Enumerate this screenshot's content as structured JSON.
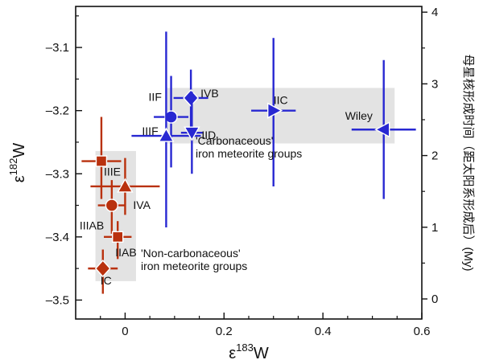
{
  "chart_data": {
    "type": "scatter",
    "xlabel_base": "ε",
    "xlabel_sup": "183",
    "xlabel_tail": "W",
    "ylabel_base": "ε",
    "ylabel_sup": "182",
    "ylabel_tail": "W",
    "y2label": "母星核形成时间（距太阳系形成后）(My)",
    "xlim": [
      -0.1,
      0.6
    ],
    "ylim": [
      -3.53,
      -3.035
    ],
    "y2lim": [
      -0.28,
      4.08
    ],
    "x_ticks": [
      {
        "value": 0,
        "label": "0"
      },
      {
        "value": 0.2,
        "label": "0.2"
      },
      {
        "value": 0.4,
        "label": "0.4"
      },
      {
        "value": 0.6,
        "label": "0.6"
      }
    ],
    "x_minor_ticks": [
      -0.05,
      0.05,
      0.1,
      0.15,
      0.25,
      0.3,
      0.35,
      0.45,
      0.5,
      0.55
    ],
    "y_ticks": [
      {
        "value": -3.5,
        "label": "–3.5"
      },
      {
        "value": -3.4,
        "label": "–3.4"
      },
      {
        "value": -3.3,
        "label": "–3.3"
      },
      {
        "value": -3.2,
        "label": "–3.2"
      },
      {
        "value": -3.1,
        "label": "–3.1"
      }
    ],
    "y_minor_ticks": [
      -3.45,
      -3.35,
      -3.25,
      -3.15,
      -3.05
    ],
    "y2_ticks": [
      {
        "value": 0,
        "label": "0"
      },
      {
        "value": 1,
        "label": "1"
      },
      {
        "value": 2,
        "label": "2"
      },
      {
        "value": 3,
        "label": "3"
      },
      {
        "value": 4,
        "label": "4"
      }
    ],
    "y2_minor_ticks": [
      0.5,
      1.5,
      2.5,
      3.5
    ],
    "regions": [
      {
        "name": "carbonaceous",
        "x": [
          0.085,
          0.545
        ],
        "y": [
          -3.252,
          -3.164
        ],
        "color": "#e3e3e3"
      },
      {
        "name": "non-carbonaceous",
        "x": [
          -0.06,
          0.022
        ],
        "y": [
          -3.47,
          -3.264
        ],
        "color": "#e3e3e3"
      }
    ],
    "series": [
      {
        "name": "Carbonaceous",
        "color": "#2828d2",
        "points": [
          {
            "label": "IIF",
            "x": 0.093,
            "y": -3.21,
            "xerr": 0.035,
            "yerr": [
              0.08,
              0.065
            ],
            "marker": "circle"
          },
          {
            "label": "IVB",
            "x": 0.133,
            "y": -3.18,
            "xerr": 0.035,
            "yerr": [
              0.055,
              0.045
            ],
            "marker": "diamond"
          },
          {
            "label": "IIIF",
            "x": 0.083,
            "y": -3.24,
            "xerr": 0.07,
            "yerr": [
              0.145,
              0.165
            ],
            "marker": "triangle-up"
          },
          {
            "label": "IID",
            "x": 0.135,
            "y": -3.235,
            "xerr": 0.022,
            "yerr": [
              0.065,
              0.065
            ],
            "marker": "triangle-down"
          },
          {
            "label": "IIC",
            "x": 0.3,
            "y": -3.2,
            "xerr": 0.045,
            "yerr": [
              0.12,
              0.115
            ],
            "marker": "triangle-right"
          },
          {
            "label": "Wiley",
            "x": 0.523,
            "y": -3.23,
            "xerr": 0.065,
            "yerr": [
              0.11,
              0.11
            ],
            "marker": "triangle-left"
          }
        ]
      },
      {
        "name": "Non-carbonaceous",
        "color": "#b9310e",
        "points": [
          {
            "label": "IIIE",
            "x": -0.048,
            "y": -3.28,
            "xerr": 0.04,
            "yerr": [
              0.06,
              0.07
            ],
            "marker": "square"
          },
          {
            "label": "IVA",
            "x": 0.0,
            "y": -3.32,
            "xerr": 0.07,
            "yerr": [
              0.045,
              0.045
            ],
            "marker": "triangle-up"
          },
          {
            "label": "IIIAB",
            "x": -0.027,
            "y": -3.35,
            "xerr": 0.028,
            "yerr": [
              0.045,
              0.04
            ],
            "marker": "circle"
          },
          {
            "label": "IIAB",
            "x": -0.015,
            "y": -3.4,
            "xerr": 0.028,
            "yerr": [
              0.035,
              0.025
            ],
            "marker": "square"
          },
          {
            "label": "IC",
            "x": -0.045,
            "y": -3.45,
            "xerr": 0.03,
            "yerr": [
              0.04,
              0.03
            ],
            "marker": "diamond"
          }
        ]
      }
    ],
    "notes": [
      {
        "id": "carbonaceous",
        "lines": [
          "'Carbonaceous'",
          "iron meteorite groups"
        ]
      },
      {
        "id": "noncarbonaceous",
        "lines": [
          "'Non-carbonaceous'",
          "iron meteorite groups"
        ]
      }
    ]
  }
}
